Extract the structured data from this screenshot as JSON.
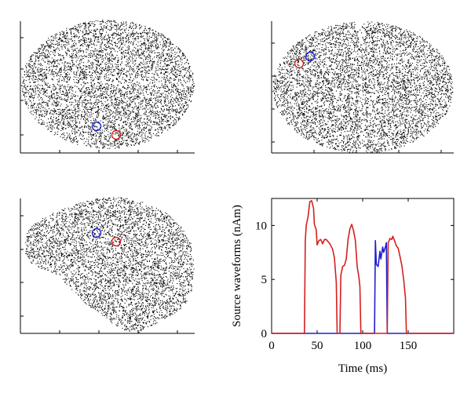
{
  "chart_data": [
    {
      "type": "scatter",
      "view": "top",
      "axes_ticks": "unlabeled",
      "markers": [
        {
          "color": "#1f1fd0"
        },
        {
          "color": "#d42020"
        }
      ]
    },
    {
      "type": "scatter",
      "view": "back",
      "axes_ticks": "unlabeled",
      "markers": [
        {
          "color": "#1f1fd0"
        },
        {
          "color": "#d42020"
        }
      ]
    },
    {
      "type": "scatter",
      "view": "side",
      "axes_ticks": "unlabeled",
      "markers": [
        {
          "color": "#1f1fd0"
        },
        {
          "color": "#d42020"
        }
      ]
    },
    {
      "type": "line",
      "xlabel": "Time (ms)",
      "ylabel": "Source waveforms (nAm)",
      "xlim": [
        0,
        200
      ],
      "ylim": [
        0,
        12.5
      ],
      "xticks": [
        0,
        50,
        100,
        150
      ],
      "yticks": [
        0,
        5,
        10
      ],
      "xtick_labels": [
        "0",
        "50",
        "100",
        "150"
      ],
      "ytick_labels": [
        "0",
        "5",
        "10"
      ],
      "series": [
        {
          "color": "#1f1fd0",
          "points": [
            [
              0,
              0
            ],
            [
              113,
              0
            ],
            [
              114,
              8.6
            ],
            [
              115,
              6.4
            ],
            [
              117,
              6.2
            ],
            [
              119,
              7.6
            ],
            [
              120,
              6.9
            ],
            [
              122,
              8
            ],
            [
              123,
              7.5
            ],
            [
              125,
              8
            ],
            [
              126,
              8.4
            ],
            [
              127,
              0
            ],
            [
              200,
              0
            ]
          ]
        },
        {
          "color": "#d42020",
          "points": [
            [
              0,
              0
            ],
            [
              36,
              0
            ],
            [
              37,
              8.6
            ],
            [
              38,
              10
            ],
            [
              40,
              10.8
            ],
            [
              42,
              12.2
            ],
            [
              44,
              12.3
            ],
            [
              46,
              11.6
            ],
            [
              47,
              10.1
            ],
            [
              49,
              9.6
            ],
            [
              50,
              8.2
            ],
            [
              52,
              8.6
            ],
            [
              54,
              8.7
            ],
            [
              56,
              8.3
            ],
            [
              58,
              8.7
            ],
            [
              60,
              8.7
            ],
            [
              62,
              8.5
            ],
            [
              64,
              8.3
            ],
            [
              67,
              7.8
            ],
            [
              69,
              7
            ],
            [
              71,
              4.7
            ],
            [
              72,
              0
            ],
            [
              75,
              0
            ],
            [
              76,
              5.4
            ],
            [
              78,
              6.2
            ],
            [
              80,
              6.3
            ],
            [
              82,
              6.9
            ],
            [
              84,
              8.7
            ],
            [
              86,
              9.7
            ],
            [
              88,
              10.1
            ],
            [
              90,
              9.5
            ],
            [
              92,
              8.6
            ],
            [
              94,
              6.2
            ],
            [
              96,
              5.1
            ],
            [
              97,
              4.3
            ],
            [
              98,
              0
            ],
            [
              127,
              0
            ],
            [
              128,
              8.4
            ],
            [
              130,
              8.8
            ],
            [
              132,
              8.7
            ],
            [
              133,
              9
            ],
            [
              135,
              8.6
            ],
            [
              137,
              8.1
            ],
            [
              139,
              7.9
            ],
            [
              141,
              7.1
            ],
            [
              143,
              6.3
            ],
            [
              145,
              5
            ],
            [
              147,
              3.3
            ],
            [
              148,
              0
            ],
            [
              200,
              0
            ]
          ]
        }
      ]
    }
  ]
}
